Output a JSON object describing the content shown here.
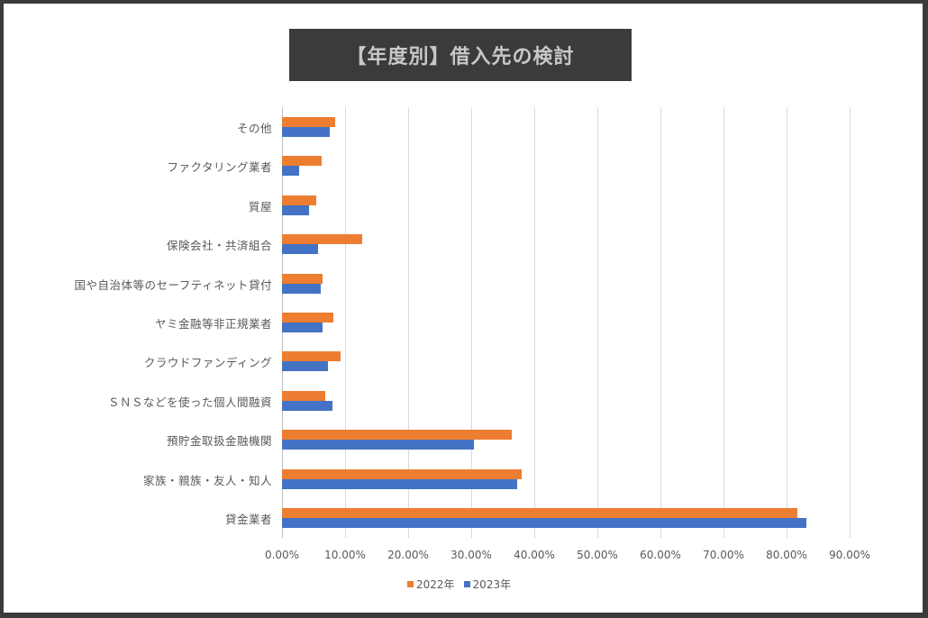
{
  "title": "【年度別】借入先の検討",
  "colors": {
    "frame": "#3d3a3a",
    "title_bg": "#3d3a3a",
    "title_text": "#c8c8c8",
    "series_2022": "#ed7d31",
    "series_2023": "#4472c4",
    "grid": "#d9d9d9"
  },
  "x_ticks": [
    "0.00%",
    "10.00%",
    "20.00%",
    "30.00%",
    "40.00%",
    "50.00%",
    "60.00%",
    "70.00%",
    "80.00%",
    "90.00%"
  ],
  "legend": [
    {
      "label": "2022年",
      "color": "#ed7d31"
    },
    {
      "label": "2023年",
      "color": "#4472c4"
    }
  ],
  "chart_data": {
    "type": "bar",
    "orientation": "horizontal",
    "title": "【年度別】借入先の検討",
    "xlabel": "",
    "ylabel": "",
    "xlim": [
      0,
      90
    ],
    "x_tick_format": "percent_2dp",
    "grid": true,
    "legend_position": "bottom",
    "categories": [
      "その他",
      "ファクタリング業者",
      "質屋",
      "保険会社・共済組合",
      "国や自治体等のセーフティネット貸付",
      "ヤミ金融等非正規業者",
      "クラウドファンディング",
      "ＳＮＳなどを使った個人間融資",
      "預貯金取扱金融機関",
      "家族・親族・友人・知人",
      "貸金業者"
    ],
    "series": [
      {
        "name": "2022年",
        "values": [
          8.4,
          6.3,
          5.4,
          12.7,
          6.4,
          8.1,
          9.3,
          6.9,
          36.4,
          38.0,
          81.7
        ]
      },
      {
        "name": "2023年",
        "values": [
          7.6,
          2.7,
          4.3,
          5.7,
          6.1,
          6.4,
          7.3,
          8.0,
          30.4,
          37.3,
          83.1
        ]
      }
    ]
  }
}
